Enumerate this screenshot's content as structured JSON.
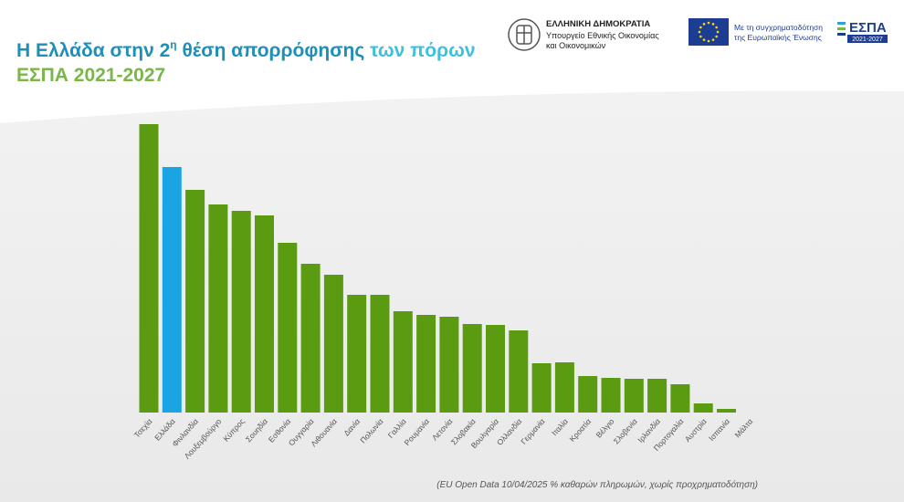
{
  "header": {
    "title_part1": "Η Ελλάδα στην 2",
    "title_sup": "η",
    "title_part2": " θέση απορρόφησης ",
    "title_part3": "των πόρων",
    "subtitle": "ΕΣΠΑ 2021-2027",
    "ministry_line1": "ΕΛΛΗΝΙΚΗ ΔΗΜΟΚΡΑΤΙΑ",
    "ministry_line2": "Υπουργείο Εθνικής Οικονομίας",
    "ministry_line3": "και Οικονομικών",
    "eu_line1": "Με τη συγχρηματοδότηση",
    "eu_line2": "της Ευρωπαϊκής Ένωσης",
    "espa_logo": "ΕΣΠΑ",
    "espa_years": "2021-2027"
  },
  "chart_data": {
    "type": "bar",
    "categories": [
      "Τσεχία",
      "Ελλάδα",
      "Φινλανδία",
      "Λουξεμβούργο",
      "Κύπρος",
      "Σουηδία",
      "Εσθονία",
      "Ουγγαρία",
      "Λιθουανία",
      "Δανία",
      "Πολωνία",
      "Γαλλία",
      "Ρουμανία",
      "Λετονία",
      "Σλοβακία",
      "Βουλγαρία",
      "Ολλανδία",
      "Γερμανία",
      "Ιταλία",
      "Κροατία",
      "Βέλγιο",
      "Σλοβενία",
      "Ιρλανδία",
      "Πορτογαλία",
      "Αυστρία",
      "Ισπανία",
      "Μάλτα"
    ],
    "values": [
      31.6,
      26.9,
      24.4,
      22.8,
      22.1,
      21.6,
      18.6,
      16.3,
      15.1,
      12.9,
      12.9,
      11.1,
      10.7,
      10.5,
      9.7,
      9.6,
      9.0,
      5.4,
      5.5,
      4.0,
      3.8,
      3.7,
      3.7,
      3.1,
      1.0,
      0.4,
      0
    ],
    "colors": [
      "#5a9b12",
      "#1ba4e4",
      "#5a9b12",
      "#5a9b12",
      "#5a9b12",
      "#5a9b12",
      "#5a9b12",
      "#5a9b12",
      "#5a9b12",
      "#5a9b12",
      "#5a9b12",
      "#5a9b12",
      "#5a9b12",
      "#5a9b12",
      "#5a9b12",
      "#5a9b12",
      "#5a9b12",
      "#5a9b12",
      "#5a9b12",
      "#5a9b12",
      "#5a9b12",
      "#5a9b12",
      "#5a9b12",
      "#5a9b12",
      "#5a9b12",
      "#5a9b12",
      "#5a9b12"
    ],
    "source": "(EU Open Data  10/04/2025 % καθαρών πληρωμών, χωρίς προχρηματοδότηση)"
  }
}
